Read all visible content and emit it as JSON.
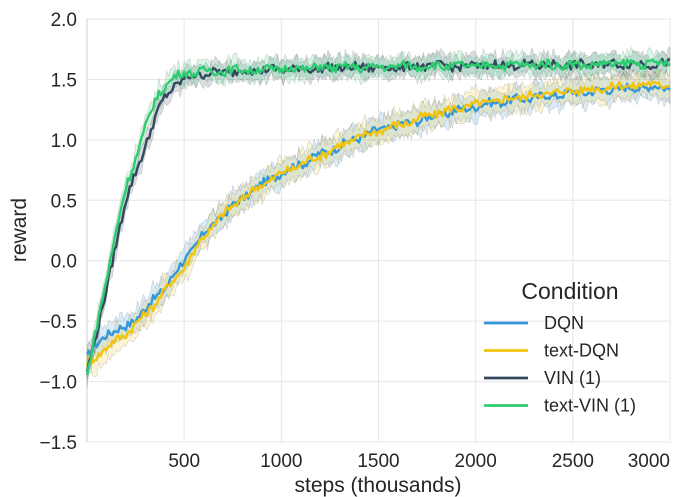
{
  "chart_data": {
    "type": "line",
    "xlabel": "steps (thousands)",
    "ylabel": "reward",
    "xlim": [
      0,
      3000
    ],
    "ylim": [
      -1.5,
      2.0
    ],
    "x_ticks": [
      500,
      1000,
      1500,
      2000,
      2500,
      3000
    ],
    "y_ticks": [
      -1.5,
      -1.0,
      -0.5,
      0.0,
      0.5,
      1.0,
      1.5,
      2.0
    ],
    "y_tick_labels": [
      "−1.5",
      "−1.0",
      "−0.5",
      "0.0",
      "0.5",
      "1.0",
      "1.5",
      "2.0"
    ],
    "grid": true,
    "legend_title": "Condition",
    "legend_position": "lower-right",
    "series": [
      {
        "name": "DQN",
        "color": "#3498db",
        "x": [
          0,
          100,
          200,
          300,
          400,
          500,
          600,
          700,
          800,
          900,
          1000,
          1100,
          1200,
          1300,
          1400,
          1500,
          1600,
          1700,
          1800,
          1900,
          2000,
          2100,
          2200,
          2300,
          2400,
          2500,
          2600,
          2700,
          2800,
          2900,
          3000
        ],
        "values": [
          -0.8,
          -0.6,
          -0.55,
          -0.4,
          -0.22,
          0.0,
          0.22,
          0.38,
          0.52,
          0.63,
          0.73,
          0.8,
          0.88,
          0.95,
          1.02,
          1.08,
          1.12,
          1.16,
          1.2,
          1.24,
          1.28,
          1.31,
          1.33,
          1.35,
          1.37,
          1.39,
          1.4,
          1.42,
          1.43,
          1.44,
          1.43
        ],
        "band": 0.1
      },
      {
        "name": "text-DQN",
        "color": "#f1c40f",
        "x": [
          0,
          100,
          200,
          300,
          400,
          500,
          600,
          700,
          800,
          900,
          1000,
          1100,
          1200,
          1300,
          1400,
          1500,
          1600,
          1700,
          1800,
          1900,
          2000,
          2100,
          2200,
          2300,
          2400,
          2500,
          2600,
          2700,
          2800,
          2900,
          3000
        ],
        "values": [
          -0.85,
          -0.72,
          -0.6,
          -0.45,
          -0.25,
          -0.05,
          0.2,
          0.38,
          0.52,
          0.63,
          0.72,
          0.8,
          0.87,
          0.95,
          1.02,
          1.08,
          1.12,
          1.17,
          1.22,
          1.26,
          1.29,
          1.32,
          1.35,
          1.37,
          1.39,
          1.41,
          1.42,
          1.44,
          1.45,
          1.46,
          1.46
        ],
        "band": 0.1
      },
      {
        "name": "VIN (1)",
        "color": "#34495e",
        "x": [
          0,
          50,
          100,
          150,
          200,
          250,
          300,
          350,
          400,
          450,
          500,
          550,
          600,
          700,
          800,
          900,
          1000,
          1100,
          1200,
          1300,
          1400,
          1500,
          1600,
          1700,
          1800,
          1900,
          2000,
          2100,
          2200,
          2300,
          2400,
          2500,
          2600,
          2700,
          2800,
          2900,
          3000
        ],
        "values": [
          -0.9,
          -0.6,
          -0.25,
          0.15,
          0.5,
          0.72,
          0.95,
          1.18,
          1.35,
          1.45,
          1.5,
          1.53,
          1.55,
          1.56,
          1.57,
          1.58,
          1.58,
          1.59,
          1.59,
          1.6,
          1.6,
          1.6,
          1.6,
          1.61,
          1.61,
          1.61,
          1.61,
          1.62,
          1.62,
          1.62,
          1.62,
          1.62,
          1.62,
          1.63,
          1.63,
          1.63,
          1.63
        ],
        "band": 0.08
      },
      {
        "name": "text-VIN (1)",
        "color": "#2ecc71",
        "x": [
          0,
          50,
          100,
          150,
          200,
          250,
          300,
          350,
          400,
          450,
          500,
          550,
          600,
          700,
          800,
          900,
          1000,
          1100,
          1200,
          1300,
          1400,
          1500,
          1600,
          1700,
          1800,
          1900,
          2000,
          2100,
          2200,
          2300,
          2400,
          2500,
          2600,
          2700,
          2800,
          2900,
          3000
        ],
        "values": [
          -0.95,
          -0.55,
          -0.15,
          0.25,
          0.6,
          0.85,
          1.1,
          1.32,
          1.45,
          1.52,
          1.55,
          1.56,
          1.57,
          1.57,
          1.58,
          1.58,
          1.59,
          1.59,
          1.6,
          1.6,
          1.6,
          1.6,
          1.61,
          1.61,
          1.61,
          1.61,
          1.61,
          1.62,
          1.62,
          1.62,
          1.62,
          1.62,
          1.62,
          1.63,
          1.63,
          1.63,
          1.63
        ],
        "band": 0.08
      }
    ]
  }
}
